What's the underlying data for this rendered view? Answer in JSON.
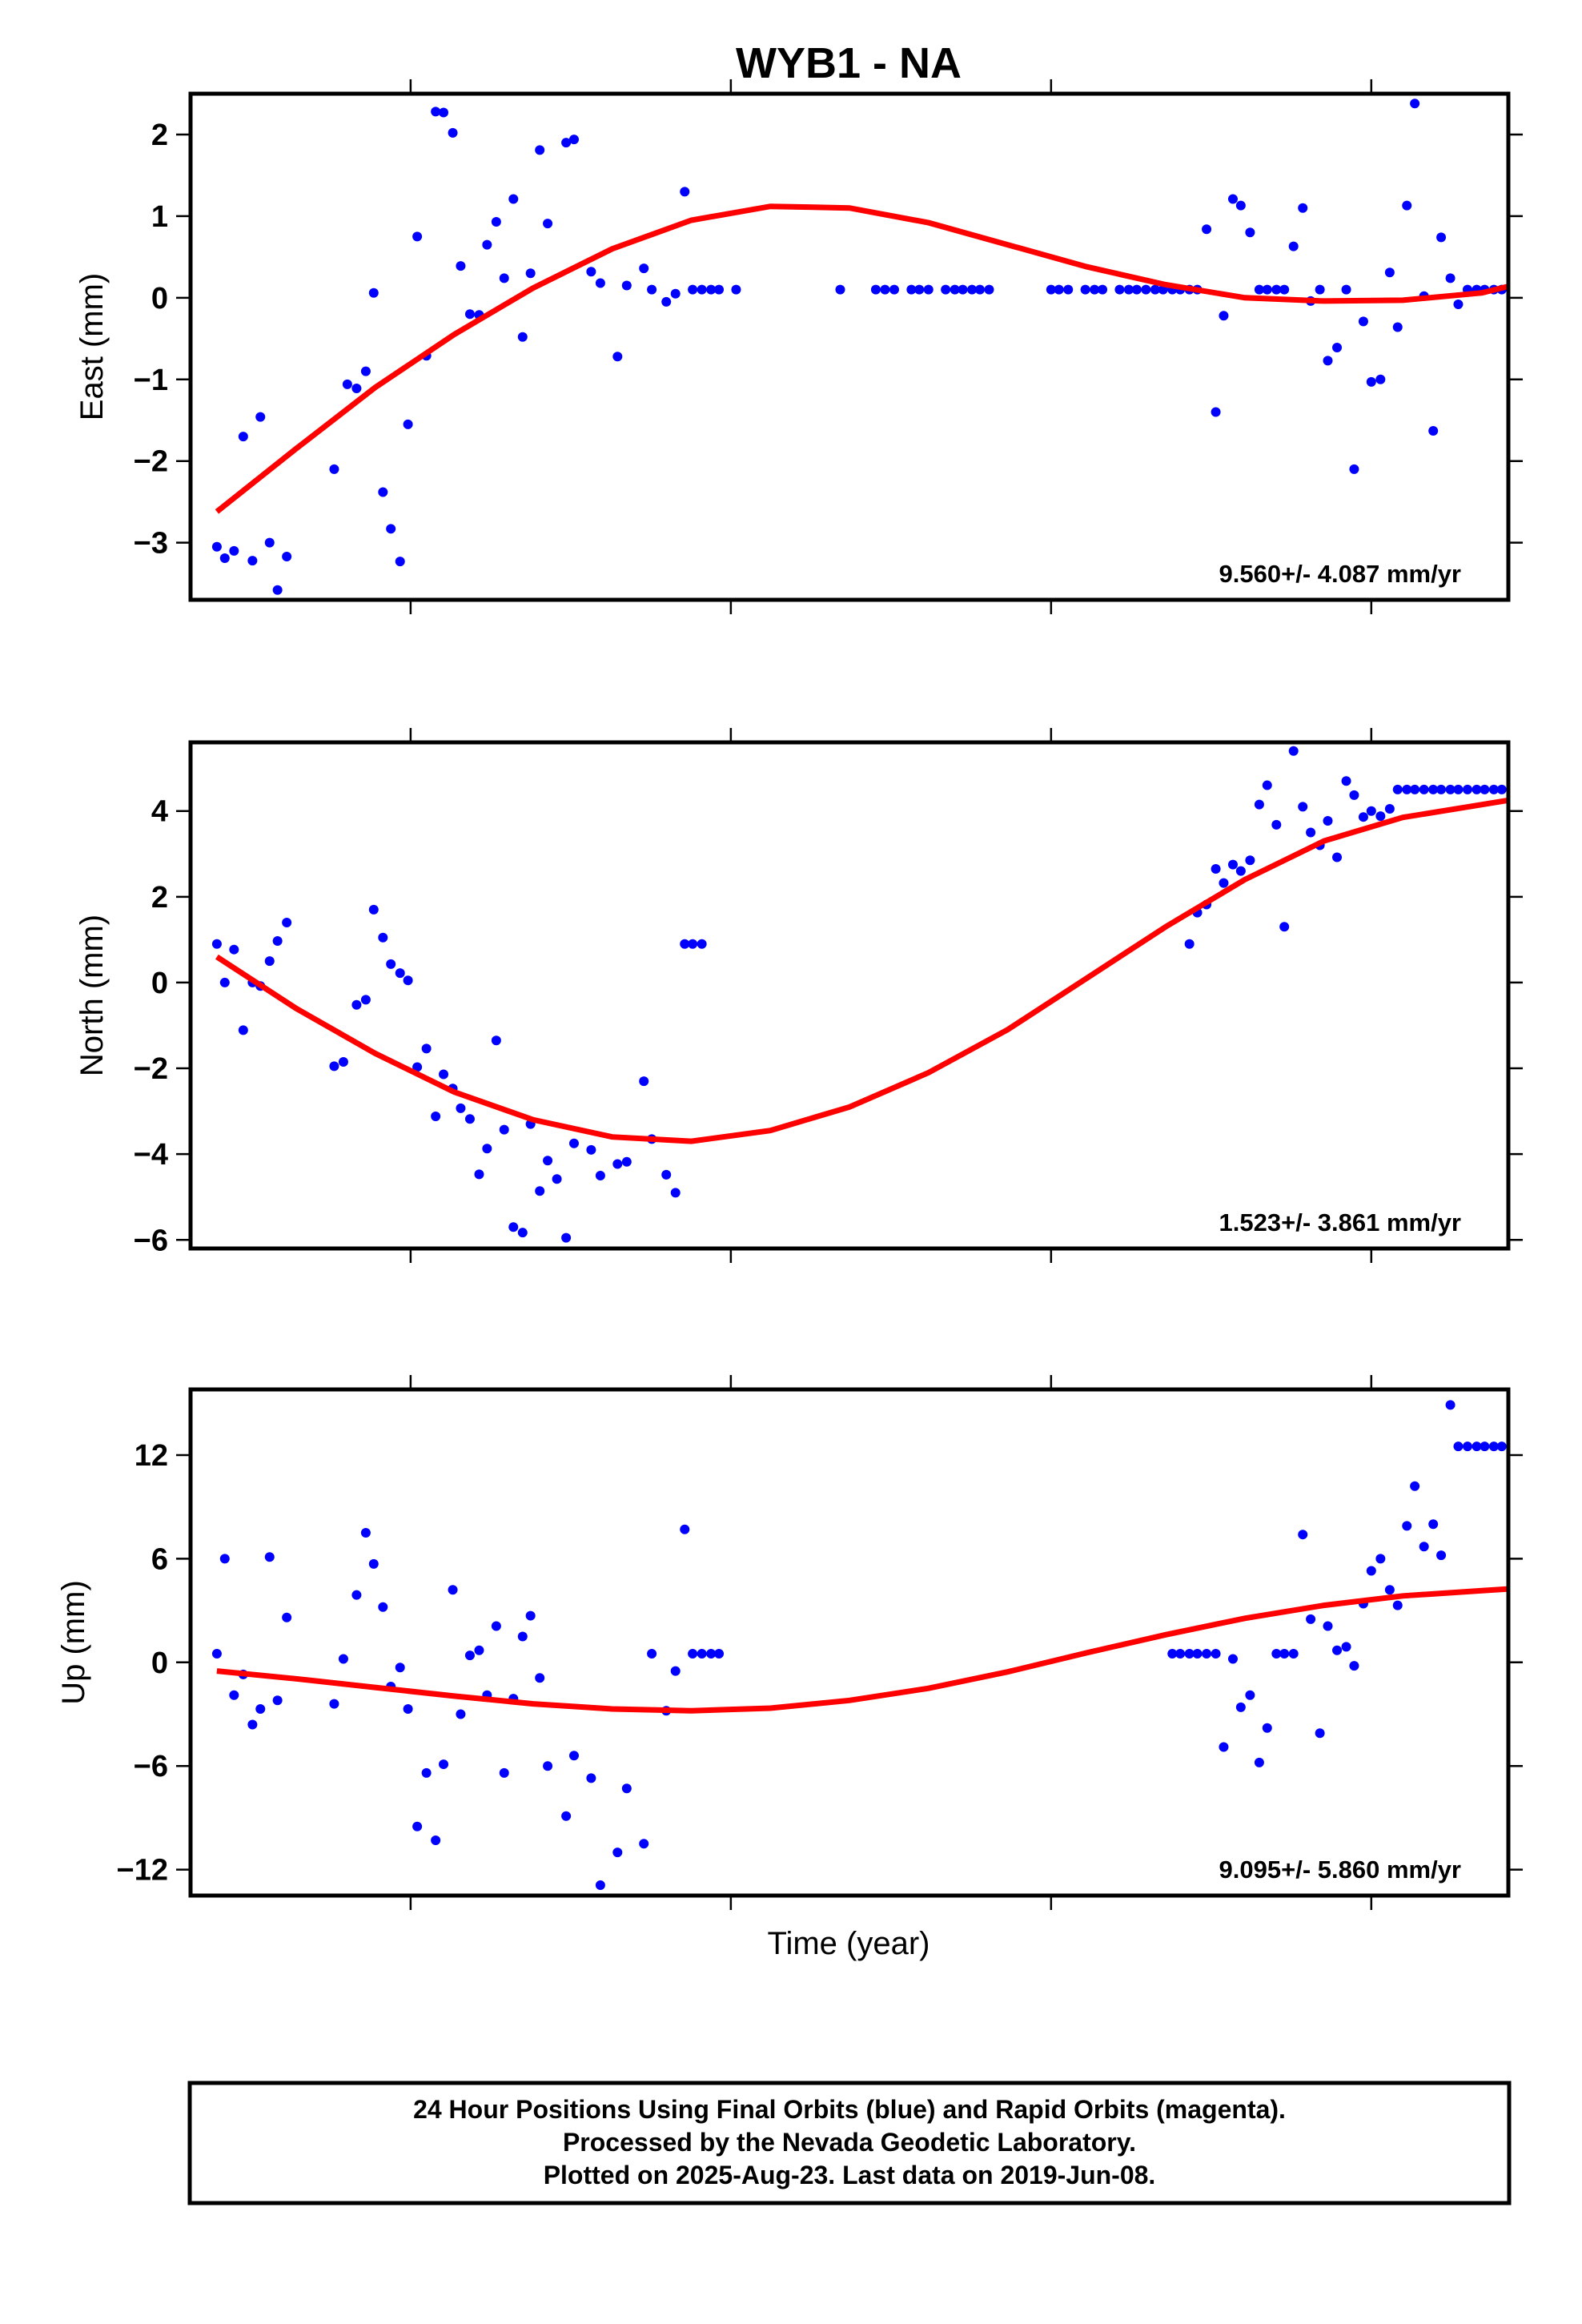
{
  "title": "WYB1 - NA",
  "xlabel": "Time (year)",
  "footer": {
    "line1": "24 Hour Positions Using Final Orbits (blue) and Rapid Orbits (magenta).",
    "line2": "Processed by the Nevada Geodetic Laboratory.",
    "line3": "Plotted on 2025-Aug-23. Last data on 2019-Jun-08."
  },
  "colors": {
    "points": "#0000ff",
    "fit": "#ff0000",
    "axes": "#000000"
  },
  "chart_data": [
    {
      "type": "scatter",
      "component": "east",
      "ylabel": "East (mm)",
      "ylim": [
        -3.7,
        2.5
      ],
      "yticks": [
        -3,
        -2,
        -1,
        0,
        1,
        2
      ],
      "xlim": [
        0,
        100
      ],
      "rate": "9.560+/- 4.087 mm/yr",
      "points": {
        "x": [
          2.0,
          2.6,
          3.3,
          4.0,
          4.7,
          5.3,
          6.0,
          6.6,
          7.3,
          10.9,
          11.9,
          12.6,
          13.3,
          13.9,
          14.6,
          15.2,
          15.9,
          16.5,
          17.2,
          17.9,
          18.6,
          19.2,
          19.9,
          20.5,
          21.2,
          21.9,
          22.5,
          23.2,
          23.8,
          24.5,
          25.2,
          25.8,
          26.5,
          27.1,
          28.5,
          29.1,
          30.4,
          31.1,
          32.4,
          33.1,
          34.4,
          35.0,
          36.1,
          36.8,
          37.5,
          38.1,
          38.8,
          39.5,
          40.1,
          41.4,
          49.3,
          52.0,
          52.7,
          53.4,
          54.7,
          55.3,
          56.0,
          57.3,
          58.0,
          58.6,
          59.3,
          59.9,
          60.6,
          65.3,
          65.9,
          66.6,
          67.9,
          68.6,
          69.2,
          70.5,
          71.2,
          71.8,
          72.5,
          73.2,
          73.8,
          74.5,
          75.1,
          75.8,
          76.4,
          77.1,
          77.8,
          78.4,
          79.1,
          79.7,
          80.4,
          81.1,
          81.7,
          82.4,
          83.0,
          83.7,
          84.4,
          85.0,
          85.7,
          86.3,
          87.0,
          87.7,
          88.3,
          89.0,
          89.6,
          90.3,
          91.0,
          91.6,
          92.3,
          92.9,
          93.6,
          94.3,
          94.9,
          95.6,
          96.2,
          96.9,
          97.6,
          98.2,
          98.9,
          99.5
        ],
        "y": [
          -3.05,
          -3.19,
          -3.1,
          -1.7,
          -3.22,
          -1.46,
          -3.0,
          -3.58,
          -3.17,
          -2.1,
          -1.06,
          -1.11,
          -0.9,
          0.06,
          -2.38,
          -2.83,
          -3.23,
          -1.55,
          0.75,
          -0.71,
          2.28,
          2.27,
          2.02,
          0.39,
          -0.2,
          -0.21,
          0.65,
          0.93,
          0.24,
          1.21,
          -0.48,
          0.3,
          1.81,
          0.91,
          1.9,
          1.94,
          0.32,
          0.18,
          -0.72,
          0.15,
          0.36,
          0.1,
          -0.05,
          0.05,
          1.3,
          0.1,
          0.1,
          0.1,
          0.1,
          0.1,
          0.1,
          0.1,
          0.1,
          0.1,
          0.1,
          0.1,
          0.1,
          0.1,
          0.1,
          0.1,
          0.1,
          0.1,
          0.1,
          0.1,
          0.1,
          0.1,
          0.1,
          0.1,
          0.1,
          0.1,
          0.1,
          0.1,
          0.1,
          0.1,
          0.1,
          0.1,
          0.1,
          0.1,
          0.1,
          0.84,
          -1.4,
          -0.22,
          1.21,
          1.13,
          0.8,
          0.1,
          0.1,
          0.1,
          0.1,
          0.63,
          1.1,
          -0.04,
          0.1,
          -0.77,
          -0.61,
          0.1,
          -2.1,
          -0.29,
          -1.03,
          -1.0,
          0.31,
          -0.36,
          1.13,
          2.38,
          0.02,
          -1.63,
          0.74,
          0.24,
          -0.08,
          0.1,
          0.1,
          0.1,
          0.1,
          0.1
        ]
      },
      "fit": {
        "x": [
          2,
          8,
          14,
          20,
          26,
          32,
          38,
          44,
          50,
          56,
          62,
          68,
          74,
          80,
          86,
          92,
          98,
          100
        ],
        "y": [
          -2.62,
          -1.85,
          -1.1,
          -0.45,
          0.12,
          0.6,
          0.95,
          1.12,
          1.1,
          0.92,
          0.65,
          0.38,
          0.16,
          0.0,
          -0.04,
          -0.03,
          0.06,
          0.14
        ]
      }
    },
    {
      "type": "scatter",
      "component": "north",
      "ylabel": "North (mm)",
      "ylim": [
        -6.2,
        5.6
      ],
      "yticks": [
        -6,
        -4,
        -2,
        0,
        2,
        4
      ],
      "xlim": [
        0,
        100
      ],
      "rate": "1.523+/- 3.861 mm/yr",
      "points": {
        "x": [
          2.0,
          2.6,
          3.3,
          4.0,
          4.7,
          5.3,
          6.0,
          6.6,
          7.3,
          10.9,
          11.6,
          12.6,
          13.3,
          13.9,
          14.6,
          15.2,
          15.9,
          16.5,
          17.2,
          17.9,
          18.6,
          19.2,
          19.9,
          20.5,
          21.2,
          21.9,
          22.5,
          23.2,
          23.8,
          24.5,
          25.2,
          25.8,
          26.5,
          27.1,
          27.8,
          28.5,
          29.1,
          30.4,
          31.1,
          32.4,
          33.1,
          34.4,
          35.0,
          36.1,
          36.8,
          37.5,
          38.1,
          38.8,
          75.8,
          76.4,
          77.1,
          77.8,
          78.4,
          79.1,
          79.7,
          80.4,
          81.1,
          81.7,
          82.4,
          83.0,
          83.7,
          84.4,
          85.0,
          85.7,
          86.3,
          87.0,
          87.7,
          88.3,
          89.0,
          89.6,
          90.3,
          91.0,
          91.6,
          92.3,
          92.9,
          93.6,
          94.3,
          94.9,
          95.6,
          96.2,
          96.9,
          97.6,
          98.2,
          98.9,
          99.5
        ],
        "y": [
          0.9,
          0.0,
          0.77,
          -1.11,
          0.0,
          -0.08,
          0.5,
          0.97,
          1.4,
          -1.95,
          -1.85,
          -0.52,
          -0.4,
          1.7,
          1.05,
          0.43,
          0.22,
          0.05,
          -1.97,
          -1.54,
          -3.12,
          -2.14,
          -2.47,
          -2.93,
          -3.18,
          -4.47,
          -3.87,
          -1.35,
          -3.43,
          -5.7,
          -5.83,
          -3.3,
          -4.86,
          -4.15,
          -4.58,
          -5.95,
          -3.75,
          -3.9,
          -4.5,
          -4.23,
          -4.18,
          -2.3,
          -3.65,
          -4.48,
          -4.9,
          0.9,
          0.9,
          0.9,
          0.9,
          1.63,
          1.82,
          2.65,
          2.32,
          2.75,
          2.6,
          2.85,
          4.15,
          4.6,
          3.68,
          1.3,
          5.4,
          4.1,
          3.5,
          3.2,
          3.77,
          2.92,
          4.7,
          4.37,
          3.86,
          4.0,
          3.88,
          4.05,
          4.5,
          4.5,
          4.5,
          4.5,
          4.5,
          4.5,
          4.5,
          4.5,
          4.5,
          4.5,
          4.5,
          4.5,
          4.5
        ]
      },
      "fit": {
        "x": [
          2,
          8,
          14,
          20,
          26,
          32,
          38,
          44,
          50,
          56,
          62,
          68,
          74,
          80,
          86,
          92,
          98,
          100
        ],
        "y": [
          0.6,
          -0.6,
          -1.65,
          -2.55,
          -3.2,
          -3.6,
          -3.7,
          -3.45,
          -2.9,
          -2.1,
          -1.1,
          0.1,
          1.3,
          2.4,
          3.3,
          3.85,
          4.15,
          4.25
        ]
      }
    },
    {
      "type": "scatter",
      "component": "up",
      "ylabel": "Up (mm)",
      "ylim": [
        -13.5,
        15.8
      ],
      "yticks": [
        -12,
        -6,
        0,
        6,
        12
      ],
      "xlim": [
        0,
        100
      ],
      "rate": "9.095+/- 5.860 mm/yr",
      "points": {
        "x": [
          2.0,
          2.6,
          3.3,
          4.0,
          4.7,
          5.3,
          6.0,
          6.6,
          7.3,
          10.9,
          11.6,
          12.6,
          13.3,
          13.9,
          14.6,
          15.2,
          15.9,
          16.5,
          17.2,
          17.9,
          18.6,
          19.2,
          19.9,
          20.5,
          21.2,
          21.9,
          22.5,
          23.2,
          23.8,
          24.5,
          25.2,
          25.8,
          26.5,
          27.1,
          28.5,
          29.1,
          30.4,
          31.1,
          32.4,
          33.1,
          34.4,
          35.0,
          36.1,
          36.8,
          37.5,
          38.1,
          38.8,
          39.5,
          40.1,
          74.5,
          75.1,
          75.8,
          76.4,
          77.1,
          77.8,
          78.4,
          79.1,
          79.7,
          80.4,
          81.1,
          81.7,
          82.4,
          83.0,
          83.7,
          84.4,
          85.0,
          85.7,
          86.3,
          87.0,
          87.7,
          88.3,
          89.0,
          89.6,
          90.3,
          91.0,
          91.6,
          92.3,
          92.9,
          93.6,
          94.3,
          94.9,
          95.6,
          96.2,
          96.9,
          97.6,
          98.2,
          98.9,
          99.5
        ],
        "y": [
          0.5,
          6.0,
          -1.9,
          -0.7,
          -3.6,
          -2.7,
          6.1,
          -2.2,
          2.6,
          -2.4,
          0.2,
          3.9,
          7.5,
          5.7,
          3.2,
          -1.4,
          -0.3,
          -2.7,
          -9.5,
          -6.4,
          -10.3,
          -5.9,
          4.2,
          -3.0,
          0.4,
          0.7,
          -1.9,
          2.1,
          -6.4,
          -2.1,
          1.5,
          2.7,
          -0.9,
          -6.0,
          -8.9,
          -5.4,
          -6.7,
          -12.9,
          -11.0,
          -7.3,
          -10.5,
          0.5,
          -2.8,
          -0.5,
          7.7,
          0.5,
          0.5,
          0.5,
          0.5,
          0.5,
          0.5,
          0.5,
          0.5,
          0.5,
          0.5,
          -4.9,
          0.2,
          -2.6,
          -1.9,
          -5.8,
          -3.8,
          0.5,
          0.5,
          0.5,
          7.4,
          2.5,
          -4.1,
          2.1,
          0.7,
          0.9,
          -0.2,
          3.4,
          5.3,
          6.0,
          4.2,
          3.3,
          7.9,
          10.2,
          6.7,
          8.0,
          6.2,
          14.9,
          12.5,
          12.5,
          12.5,
          12.5,
          12.5,
          12.5
        ]
      },
      "fit": {
        "x": [
          2,
          8,
          14,
          20,
          26,
          32,
          38,
          44,
          50,
          56,
          62,
          68,
          74,
          80,
          86,
          92,
          98,
          100
        ],
        "y": [
          -0.5,
          -0.95,
          -1.45,
          -1.95,
          -2.4,
          -2.7,
          -2.8,
          -2.65,
          -2.2,
          -1.5,
          -0.55,
          0.55,
          1.6,
          2.55,
          3.3,
          3.85,
          4.15,
          4.25
        ]
      }
    }
  ]
}
